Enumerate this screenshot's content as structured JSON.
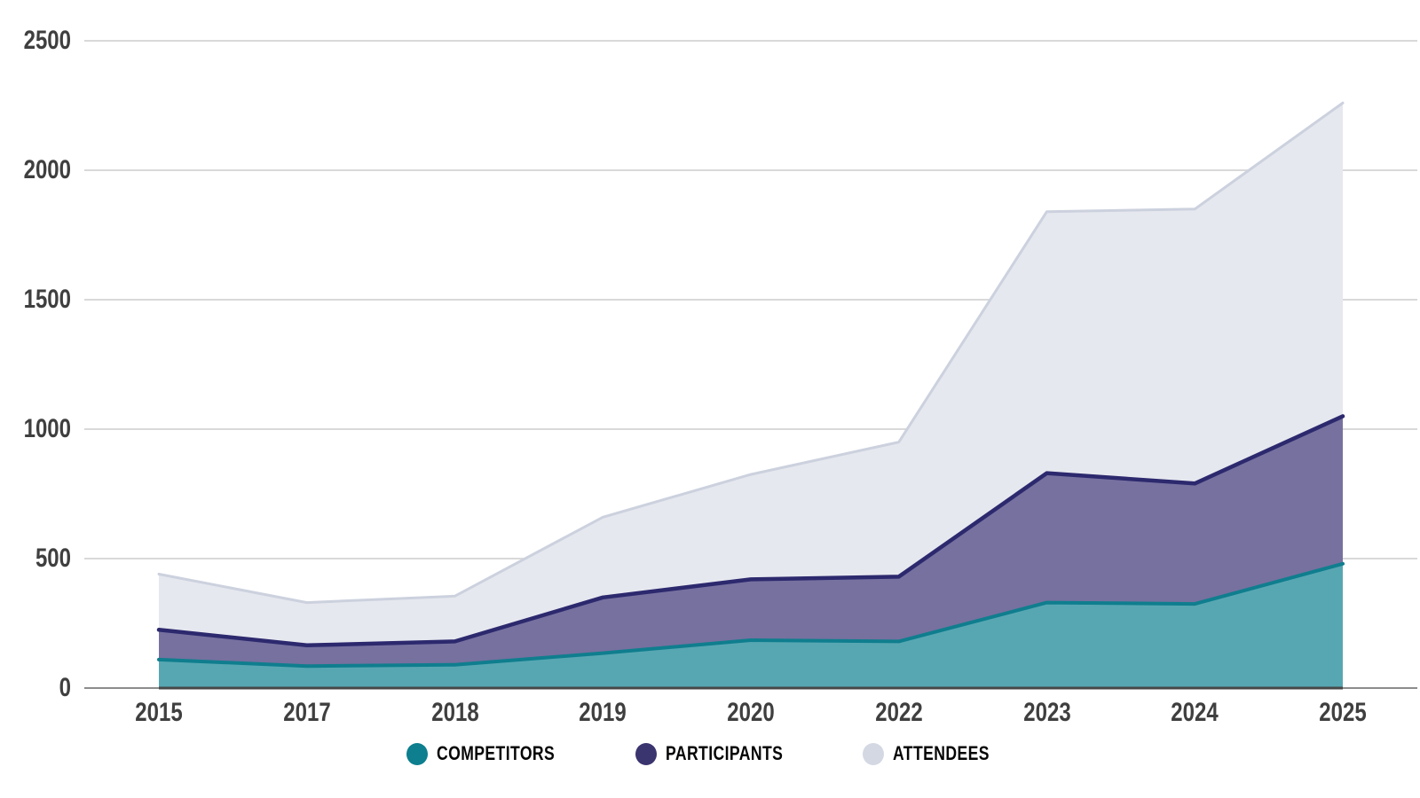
{
  "chart_data": {
    "type": "area",
    "layering": "overlay-front-to-back",
    "title": "",
    "xlabel": "",
    "ylabel": "",
    "categories": [
      "2015",
      "2017",
      "2018",
      "2019",
      "2020",
      "2022",
      "2023",
      "2024",
      "2025"
    ],
    "series": [
      {
        "name": "COMPETITORS",
        "values": [
          110,
          85,
          90,
          135,
          185,
          180,
          330,
          325,
          480
        ],
        "fill": "#57a7b2",
        "stroke": "#0f7e8e",
        "stroke_width": 4,
        "legend_dot": "#0d7f8e"
      },
      {
        "name": "PARTICIPANTS",
        "values": [
          225,
          165,
          180,
          350,
          420,
          430,
          830,
          790,
          1050
        ],
        "fill": "#76719f",
        "stroke": "#2d296e",
        "stroke_width": 4.5,
        "legend_dot": "#3a346f"
      },
      {
        "name": "ATTENDEES",
        "values": [
          440,
          330,
          355,
          660,
          825,
          950,
          1840,
          1850,
          2260
        ],
        "fill": "#e6e8ef",
        "stroke": "#ccd1de",
        "stroke_width": 3,
        "legend_dot": "#d3d8e3"
      }
    ],
    "y_ticks": [
      0,
      500,
      1000,
      1500,
      2000,
      2500
    ],
    "ylim": [
      0,
      2500
    ],
    "grid": true,
    "legend_position": "bottom"
  },
  "colors": {
    "background": "#ffffff",
    "gridline": "#d9d9d9",
    "axis_line": "#8d8d8d",
    "axis_baseline_dark": "#474747",
    "tick_label": "#3f3f3f",
    "legend_text": "#060606"
  }
}
